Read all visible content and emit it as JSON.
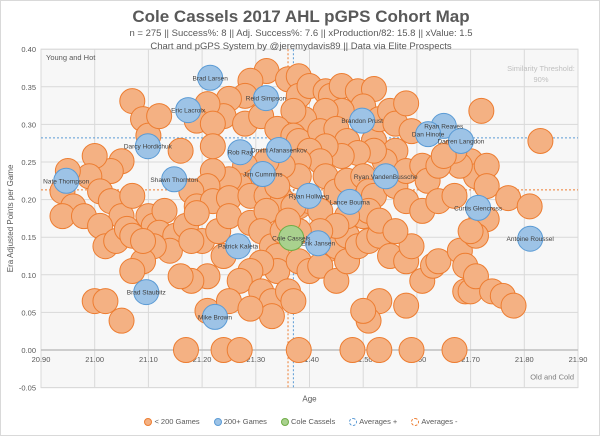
{
  "chart_data": {
    "type": "scatter",
    "subtype": "bubble",
    "title": "Cole Cassels 2017 AHL pGPS Cohort Map",
    "subtitle": "n = 275 || Success%: 8 || Adj. Success%: 7.6 || xProduction/82: 15.8 || xValue: 1.5",
    "subtitle2": "Chart and pGPS System by @jeremydavis89 || Data via Elite Prospects",
    "similarity_label": "Similarity Threshold:",
    "similarity_value": "90%",
    "xlabel": "Age",
    "ylabel": "Era Adjusted Points per Game",
    "xlim": [
      20.9,
      21.9
    ],
    "ylim": [
      -0.05,
      0.4
    ],
    "xticks": [
      "20.90",
      "21.00",
      "21.10",
      "21.20",
      "21.30",
      "21.40",
      "21.50",
      "21.60",
      "21.70",
      "21.80",
      "21.90"
    ],
    "yticks": [
      "-0.05",
      "0.00",
      "0.05",
      "0.10",
      "0.15",
      "0.20",
      "0.25",
      "0.30",
      "0.35",
      "0.40"
    ],
    "grid": true,
    "legend_position": "bottom",
    "quadrant_labels": {
      "top_left": "Young and Hot",
      "bottom_right": "Old and Cold"
    },
    "colors": {
      "under200": "#f4b183",
      "under200_edge": "#ed7d31",
      "over200": "#9dc3e6",
      "over200_edge": "#5b9bd5",
      "player": "#a9d18e",
      "player_edge": "#70ad47"
    },
    "averages": {
      "plus": {
        "x": 21.37,
        "y": 0.282,
        "color": "#5b9bd5"
      },
      "minus": {
        "x": 21.36,
        "y": 0.213,
        "color": "#ed7d31"
      }
    },
    "legend": [
      "< 200 Games",
      "200+ Games",
      "Cole Cassels",
      "Averages +",
      "Averages -"
    ],
    "series": [
      {
        "name": "< 200 Games",
        "points": [
          [
            21.32,
            0.371
          ],
          [
            21.36,
            0.36
          ],
          [
            21.38,
            0.364
          ],
          [
            21.38,
            0.338
          ],
          [
            21.4,
            0.351
          ],
          [
            21.43,
            0.344
          ],
          [
            21.44,
            0.338
          ],
          [
            21.46,
            0.351
          ],
          [
            21.49,
            0.344
          ],
          [
            21.52,
            0.347
          ],
          [
            21.5,
            0.324
          ],
          [
            21.46,
            0.318
          ],
          [
            21.43,
            0.318
          ],
          [
            21.39,
            0.307
          ],
          [
            21.37,
            0.318
          ],
          [
            21.29,
            0.358
          ],
          [
            21.28,
            0.338
          ],
          [
            21.25,
            0.334
          ],
          [
            21.24,
            0.311
          ],
          [
            21.21,
            0.327
          ],
          [
            21.19,
            0.305
          ],
          [
            21.22,
            0.301
          ],
          [
            21.28,
            0.301
          ],
          [
            21.31,
            0.311
          ],
          [
            21.34,
            0.294
          ],
          [
            21.37,
            0.285
          ],
          [
            21.38,
            0.278
          ],
          [
            21.42,
            0.291
          ],
          [
            21.45,
            0.294
          ],
          [
            21.47,
            0.278
          ],
          [
            21.52,
            0.278
          ],
          [
            21.53,
            0.307
          ],
          [
            21.55,
            0.318
          ],
          [
            21.56,
            0.301
          ],
          [
            21.58,
            0.328
          ],
          [
            21.59,
            0.291
          ],
          [
            21.56,
            0.265
          ],
          [
            21.54,
            0.251
          ],
          [
            21.52,
            0.265
          ],
          [
            21.49,
            0.262
          ],
          [
            21.46,
            0.258
          ],
          [
            21.43,
            0.271
          ],
          [
            21.4,
            0.265
          ],
          [
            21.42,
            0.251
          ],
          [
            21.38,
            0.251
          ],
          [
            21.38,
            0.231
          ],
          [
            21.35,
            0.245
          ],
          [
            21.32,
            0.251
          ],
          [
            21.28,
            0.245
          ],
          [
            21.3,
            0.225
          ],
          [
            21.27,
            0.218
          ],
          [
            21.25,
            0.227
          ],
          [
            21.22,
            0.238
          ],
          [
            21.21,
            0.218
          ],
          [
            21.18,
            0.211
          ],
          [
            21.19,
            0.191
          ],
          [
            21.22,
            0.198
          ],
          [
            21.25,
            0.202
          ],
          [
            21.29,
            0.205
          ],
          [
            21.32,
            0.205
          ],
          [
            21.35,
            0.198
          ],
          [
            21.38,
            0.191
          ],
          [
            21.43,
            0.231
          ],
          [
            21.45,
            0.211
          ],
          [
            21.47,
            0.225
          ],
          [
            21.5,
            0.231
          ],
          [
            21.51,
            0.211
          ],
          [
            21.52,
            0.205
          ],
          [
            21.56,
            0.218
          ],
          [
            21.58,
            0.238
          ],
          [
            21.61,
            0.245
          ],
          [
            21.62,
            0.225
          ],
          [
            21.58,
            0.198
          ],
          [
            21.61,
            0.185
          ],
          [
            21.64,
            0.198
          ],
          [
            21.67,
            0.205
          ],
          [
            21.7,
            0.251
          ],
          [
            21.71,
            0.231
          ],
          [
            21.68,
            0.245
          ],
          [
            21.64,
            0.245
          ],
          [
            21.67,
            0.265
          ],
          [
            21.72,
            0.318
          ],
          [
            21.65,
            0.258
          ],
          [
            21.73,
            0.245
          ],
          [
            21.73,
            0.218
          ],
          [
            21.72,
            0.178
          ],
          [
            21.73,
            0.174
          ],
          [
            21.77,
            0.202
          ],
          [
            21.81,
            0.191
          ],
          [
            21.83,
            0.278
          ],
          [
            21.07,
            0.331
          ],
          [
            21.09,
            0.307
          ],
          [
            21.1,
            0.285
          ],
          [
            21.12,
            0.311
          ],
          [
            21.16,
            0.265
          ],
          [
            21.22,
            0.271
          ],
          [
            21.05,
            0.251
          ],
          [
            21.03,
            0.238
          ],
          [
            21.0,
            0.258
          ],
          [
            20.99,
            0.231
          ],
          [
            20.95,
            0.238
          ],
          [
            20.94,
            0.211
          ],
          [
            20.96,
            0.191
          ],
          [
            20.94,
            0.178
          ],
          [
            20.98,
            0.178
          ],
          [
            21.01,
            0.211
          ],
          [
            21.03,
            0.198
          ],
          [
            21.05,
            0.178
          ],
          [
            21.07,
            0.205
          ],
          [
            21.1,
            0.178
          ],
          [
            21.11,
            0.165
          ],
          [
            21.13,
            0.185
          ],
          [
            21.01,
            0.165
          ],
          [
            21.02,
            0.138
          ],
          [
            21.04,
            0.145
          ],
          [
            21.06,
            0.161
          ],
          [
            21.07,
            0.152
          ],
          [
            21.12,
            0.156
          ],
          [
            21.15,
            0.152
          ],
          [
            21.17,
            0.165
          ],
          [
            21.19,
            0.182
          ],
          [
            21.2,
            0.145
          ],
          [
            21.23,
            0.158
          ],
          [
            21.25,
            0.178
          ],
          [
            21.29,
            0.169
          ],
          [
            21.32,
            0.185
          ],
          [
            21.31,
            0.158
          ],
          [
            21.33,
            0.138
          ],
          [
            21.35,
            0.158
          ],
          [
            21.34,
            0.125
          ],
          [
            21.34,
            0.105
          ],
          [
            21.31,
            0.116
          ],
          [
            21.29,
            0.105
          ],
          [
            21.27,
            0.092
          ],
          [
            21.31,
            0.078
          ],
          [
            21.33,
            0.065
          ],
          [
            21.33,
            0.045
          ],
          [
            21.36,
            0.078
          ],
          [
            21.37,
            0.065
          ],
          [
            21.38,
            0.118
          ],
          [
            21.4,
            0.105
          ],
          [
            21.43,
            0.132
          ],
          [
            21.45,
            0.138
          ],
          [
            21.47,
            0.152
          ],
          [
            21.42,
            0.112
          ],
          [
            21.45,
            0.092
          ],
          [
            21.47,
            0.118
          ],
          [
            21.49,
            0.138
          ],
          [
            21.51,
            0.145
          ],
          [
            21.53,
            0.152
          ],
          [
            21.55,
            0.125
          ],
          [
            21.58,
            0.118
          ],
          [
            21.59,
            0.138
          ],
          [
            21.61,
            0.092
          ],
          [
            21.63,
            0.112
          ],
          [
            21.64,
            0.118
          ],
          [
            21.68,
            0.132
          ],
          [
            21.69,
            0.112
          ],
          [
            21.69,
            0.078
          ],
          [
            21.7,
            0.078
          ],
          [
            21.71,
            0.098
          ],
          [
            21.74,
            0.078
          ],
          [
            21.76,
            0.072
          ],
          [
            21.78,
            0.059
          ],
          [
            21.71,
            0.152
          ],
          [
            21.7,
            0.158
          ],
          [
            21.58,
            0.059
          ],
          [
            21.53,
            0.065
          ],
          [
            21.51,
            0.039
          ],
          [
            21.5,
            0.052
          ],
          [
            21.0,
            0.065
          ],
          [
            21.02,
            0.065
          ],
          [
            21.05,
            0.039
          ],
          [
            21.24,
            0.125
          ],
          [
            21.21,
            0.098
          ],
          [
            21.18,
            0.092
          ],
          [
            21.21,
            0.052
          ],
          [
            21.16,
            0.098
          ],
          [
            21.25,
            0.065
          ],
          [
            21.29,
            0.055
          ],
          [
            21.17,
            0.0
          ],
          [
            21.24,
            0.0
          ],
          [
            21.27,
            0.0
          ],
          [
            21.48,
            0.0
          ],
          [
            21.53,
            0.0
          ],
          [
            21.59,
            0.0
          ],
          [
            21.67,
            0.0
          ],
          [
            21.38,
            0.0
          ],
          [
            21.14,
            0.132
          ],
          [
            21.11,
            0.138
          ],
          [
            21.09,
            0.118
          ],
          [
            21.07,
            0.105
          ],
          [
            21.4,
            0.198
          ],
          [
            21.42,
            0.185
          ],
          [
            21.37,
            0.191
          ],
          [
            21.18,
            0.145
          ],
          [
            21.09,
            0.145
          ],
          [
            21.5,
            0.178
          ],
          [
            21.51,
            0.185
          ],
          [
            21.53,
            0.172
          ],
          [
            21.56,
            0.158
          ],
          [
            21.47,
            0.178
          ],
          [
            21.45,
            0.165
          ],
          [
            21.42,
            0.158
          ],
          [
            21.38,
            0.158
          ],
          [
            21.36,
            0.172
          ],
          [
            21.34,
            0.218
          ]
        ]
      },
      {
        "name": "200+ Games",
        "points": [
          {
            "label": "Brad Larsen",
            "x": 21.215,
            "y": 0.362
          },
          {
            "label": "Reid Simpson",
            "x": 21.319,
            "y": 0.335
          },
          {
            "label": "Eric Lacroix",
            "x": 21.174,
            "y": 0.319
          },
          {
            "label": "Brandon Prust",
            "x": 21.498,
            "y": 0.305
          },
          {
            "label": "Ryan Reaves",
            "x": 21.65,
            "y": 0.298
          },
          {
            "label": "Dan Hinote",
            "x": 21.621,
            "y": 0.287
          },
          {
            "label": "Darren Langdon",
            "x": 21.682,
            "y": 0.278
          },
          {
            "label": "Darcy Hordichuk",
            "x": 21.099,
            "y": 0.271
          },
          {
            "label": "Rob Ray",
            "x": 21.271,
            "y": 0.263
          },
          {
            "label": "Dmitri Afanasenkov",
            "x": 21.343,
            "y": 0.266
          },
          {
            "label": "Jim Cummins",
            "x": 21.313,
            "y": 0.234
          },
          {
            "label": "Shawn Thornton",
            "x": 21.148,
            "y": 0.227
          },
          {
            "label": "Nate Thompson",
            "x": 20.947,
            "y": 0.225
          },
          {
            "label": "Ryan VandenBussche",
            "x": 21.542,
            "y": 0.231
          },
          {
            "label": "Ryan Hollweg",
            "x": 21.399,
            "y": 0.205
          },
          {
            "label": "Lance Bouma",
            "x": 21.475,
            "y": 0.197
          },
          {
            "label": "Curtis Glencross",
            "x": 21.714,
            "y": 0.189
          },
          {
            "label": "Antoine Roussel",
            "x": 21.811,
            "y": 0.148
          },
          {
            "label": "Erik Jansen",
            "x": 21.416,
            "y": 0.142
          },
          {
            "label": "Patrick Kaleta",
            "x": 21.267,
            "y": 0.138
          },
          {
            "label": "Brad Staubitz",
            "x": 21.096,
            "y": 0.077
          },
          {
            "label": "Mike Brown",
            "x": 21.224,
            "y": 0.044
          }
        ]
      },
      {
        "name": "Cole Cassels",
        "points": [
          {
            "label": "Cole Cassels",
            "x": 21.366,
            "y": 0.149
          }
        ]
      }
    ]
  }
}
